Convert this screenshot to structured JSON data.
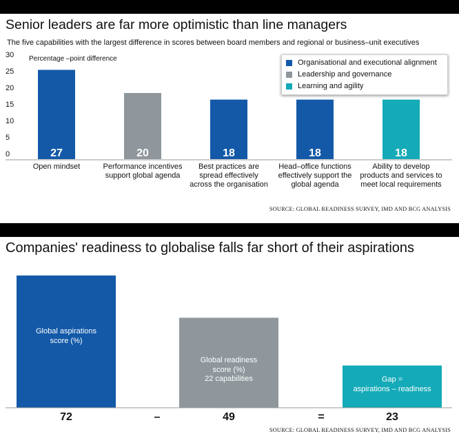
{
  "chart_data": [
    {
      "type": "bar",
      "title": "Senior leaders are far more optimistic than line managers",
      "subtitle": "The five capabilities with the largest difference in scores between board members and regional or business–unit executives",
      "ylabel": "Percentage –point difference",
      "ylim": [
        0,
        30
      ],
      "yticks": [
        0,
        5,
        10,
        15,
        20,
        25,
        30
      ],
      "categories": [
        "Open mindset",
        "Performance incentives support global agenda",
        "Best practices are spread effectively across the organisation",
        "Head–office functions effectively support the global agenda",
        "Ability to develop products and services to meet local requirements"
      ],
      "values": [
        27,
        20,
        18,
        18,
        18
      ],
      "value_labels": [
        "27",
        "20",
        "18",
        "18",
        "18"
      ],
      "category_groups": [
        "Organisational and executional alignment",
        "Leadership and governance",
        "Organisational and executional alignment",
        "Organisational and executional alignment",
        "Learning and agility"
      ],
      "legend": [
        {
          "label": "Organisational and executional alignment",
          "color": "#1359a8"
        },
        {
          "label": "Leadership and governance",
          "color": "#8f979c"
        },
        {
          "label": "Learning and agility",
          "color": "#14aab8"
        }
      ],
      "legend_position": "top-right",
      "grid": false,
      "source": "SOURCE: GLOBAL READINESS SURVEY, IMD AND BCG ANALYSIS"
    },
    {
      "type": "bar",
      "title": "Companies' readiness to globalise falls far short of their aspirations",
      "categories": [
        "Global aspirations score (%)",
        "Global readiness score (%) 22 capabilities",
        "Gap = aspirations – readiness"
      ],
      "bar_labels": [
        [
          "Global aspirations",
          "score (%)"
        ],
        [
          "Global readiness",
          "score (%)",
          "22 capabilities"
        ],
        [
          "Gap =",
          "aspirations – readiness"
        ]
      ],
      "values": [
        72,
        49,
        23
      ],
      "value_labels": [
        "72",
        "49",
        "23"
      ],
      "operators": [
        "–",
        "="
      ],
      "colors": [
        "#1359a8",
        "#8f979c",
        "#14aab8"
      ],
      "grid": false,
      "source": "SOURCE: GLOBAL READINESS SURVEY, IMD AND BCG ANALYSIS"
    }
  ]
}
